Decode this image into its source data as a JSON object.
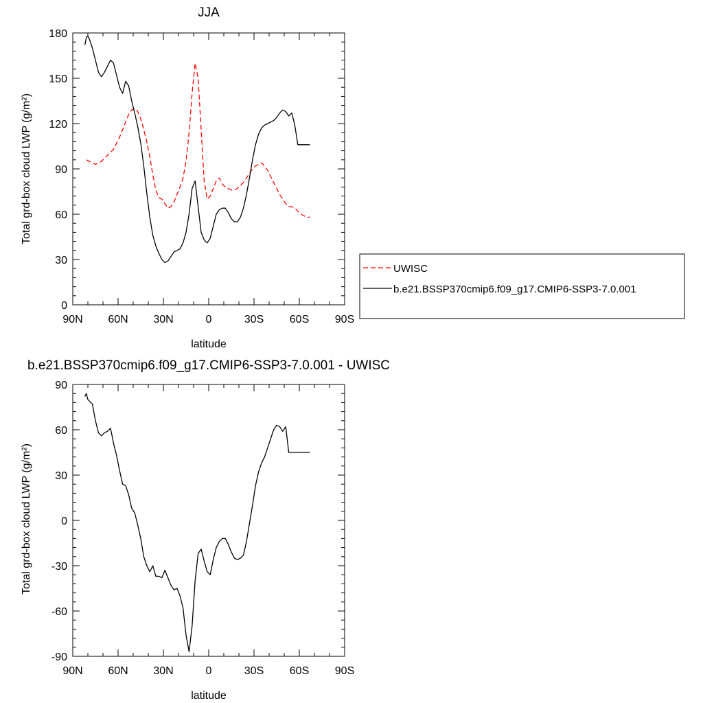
{
  "chart_data": [
    {
      "type": "line",
      "title": "JJA",
      "xlabel": "latitude",
      "ylabel": "Total grd-box cloud LWP (g/m²)",
      "xlim": [
        90,
        -90
      ],
      "ylim": [
        0,
        180
      ],
      "xticks": [
        90,
        60,
        30,
        0,
        -30,
        -60,
        -90
      ],
      "xticklabels": [
        "90N",
        "60N",
        "30N",
        "0",
        "30S",
        "60S",
        "90S"
      ],
      "yticks": [
        0,
        30,
        60,
        90,
        120,
        150,
        180
      ],
      "yticklabels": [
        "0",
        "30",
        "60",
        "90",
        "120",
        "150",
        "180"
      ],
      "legend": {
        "placement": "right",
        "entries": [
          "UWISC",
          "b.e21.BSSP370cmip6.f09_g17.CMIP6-SSP3-7.0.001"
        ]
      },
      "series": [
        {
          "name": "UWISC",
          "style": "dashed",
          "color": "#ff0000",
          "x": [
            81,
            79,
            77,
            75,
            73,
            71,
            69,
            67,
            65,
            63,
            61,
            59,
            57,
            55,
            53,
            51,
            49,
            47,
            45,
            43,
            41,
            39,
            37,
            35,
            33,
            31,
            29,
            27,
            25,
            23,
            21,
            19,
            17,
            15,
            13,
            11,
            9,
            7,
            5,
            3,
            1,
            -1,
            -3,
            -5,
            -7,
            -9,
            -11,
            -13,
            -15,
            -17,
            -19,
            -21,
            -23,
            -25,
            -27,
            -29,
            -31,
            -33,
            -35,
            -37,
            -39,
            -41,
            -43,
            -45,
            -47,
            -49,
            -51,
            -53,
            -55,
            -57,
            -59,
            -61,
            -63,
            -65,
            -67
          ],
          "values": [
            96,
            95,
            94,
            93,
            94,
            95,
            97,
            99,
            101,
            103,
            107,
            111,
            116,
            121,
            126,
            129,
            130,
            128,
            123,
            116,
            108,
            98,
            86,
            76,
            71,
            70,
            67,
            64,
            65,
            68,
            73,
            78,
            84,
            95,
            114,
            140,
            160,
            150,
            116,
            82,
            70,
            72,
            77,
            82,
            84,
            80,
            78,
            77,
            76,
            76,
            77,
            79,
            81,
            84,
            87,
            90,
            92,
            93,
            94,
            92,
            89,
            85,
            81,
            77,
            73,
            70,
            67,
            65,
            65,
            64,
            62,
            60,
            59,
            58,
            58
          ]
        },
        {
          "name": "b.e21.BSSP370cmip6.f09_g17.CMIP6-SSP3-7.0.001",
          "style": "solid",
          "color": "#000000",
          "x": [
            82,
            81,
            80,
            79,
            77,
            75,
            73,
            71,
            69,
            67,
            65,
            63,
            61,
            59,
            57,
            55,
            53,
            51,
            49,
            47,
            45,
            43,
            41,
            39,
            37,
            35,
            33,
            31,
            29,
            27,
            25,
            23,
            21,
            19,
            17,
            15,
            13,
            11,
            9,
            7,
            5,
            3,
            1,
            -1,
            -3,
            -5,
            -7,
            -9,
            -11,
            -13,
            -15,
            -17,
            -19,
            -21,
            -23,
            -25,
            -27,
            -29,
            -31,
            -33,
            -35,
            -37,
            -39,
            -41,
            -43,
            -45,
            -47,
            -49,
            -51,
            -53,
            -55,
            -57,
            -59,
            -61,
            -63,
            -65,
            -67
          ],
          "values": [
            172,
            177,
            178,
            176,
            170,
            162,
            154,
            151,
            154,
            158,
            162,
            160,
            152,
            144,
            140,
            148,
            145,
            135,
            127,
            118,
            107,
            92,
            74,
            58,
            46,
            39,
            34,
            30,
            28,
            29,
            32,
            35,
            36,
            37,
            41,
            48,
            60,
            77,
            82,
            65,
            48,
            43,
            41,
            44,
            52,
            60,
            63,
            64,
            64,
            61,
            57,
            55,
            55,
            58,
            64,
            73,
            84,
            96,
            106,
            113,
            117,
            119,
            120,
            121,
            122,
            124,
            127,
            129,
            128,
            125,
            127,
            119,
            106,
            106,
            106,
            106,
            106
          ]
        }
      ]
    },
    {
      "type": "line",
      "title": "b.e21.BSSP370cmip6.f09_g17.CMIP6-SSP3-7.0.001 - UWISC",
      "xlabel": "latitude",
      "ylabel": "Total grd-box cloud LWP (g/m²)",
      "xlim": [
        90,
        -90
      ],
      "ylim": [
        -90,
        90
      ],
      "xticks": [
        90,
        60,
        30,
        0,
        -30,
        -60,
        -90
      ],
      "xticklabels": [
        "90N",
        "60N",
        "30N",
        "0",
        "30S",
        "60S",
        "90S"
      ],
      "yticks": [
        -90,
        -60,
        -30,
        0,
        30,
        60,
        90
      ],
      "yticklabels": [
        "-90",
        "-60",
        "-30",
        "0",
        "30",
        "60",
        "90"
      ],
      "series": [
        {
          "style": "solid",
          "color": "#000000",
          "x": [
            82,
            81,
            80,
            79,
            77,
            75,
            73,
            71,
            69,
            67,
            65,
            63,
            61,
            59,
            57,
            55,
            53,
            51,
            49,
            47,
            45,
            43,
            41,
            39,
            37,
            35,
            33,
            31,
            29,
            27,
            25,
            23,
            21,
            19,
            17,
            15,
            13,
            11,
            9,
            7,
            5,
            3,
            1,
            -1,
            -3,
            -5,
            -7,
            -9,
            -11,
            -13,
            -15,
            -17,
            -19,
            -21,
            -23,
            -25,
            -27,
            -29,
            -31,
            -33,
            -35,
            -37,
            -39,
            -41,
            -43,
            -45,
            -47,
            -49,
            -51,
            -53,
            -55,
            -57,
            -59,
            -61,
            -63,
            -65,
            -67
          ],
          "values": [
            82,
            84,
            80,
            79,
            77,
            66,
            58,
            56,
            58,
            59,
            61,
            51,
            43,
            33,
            24,
            23,
            17,
            8,
            5,
            -3,
            -12,
            -24,
            -30,
            -34,
            -30,
            -37,
            -37,
            -38,
            -33,
            -38,
            -43,
            -46,
            -45,
            -50,
            -58,
            -76,
            -87,
            -70,
            -40,
            -22,
            -19,
            -27,
            -34,
            -36,
            -26,
            -18,
            -14,
            -12,
            -12,
            -16,
            -21,
            -25,
            -26,
            -25,
            -23,
            -14,
            -2,
            10,
            23,
            32,
            38,
            42,
            48,
            54,
            60,
            63,
            62,
            59,
            62,
            45,
            45,
            45,
            45,
            45,
            45,
            45,
            45
          ]
        }
      ]
    }
  ]
}
